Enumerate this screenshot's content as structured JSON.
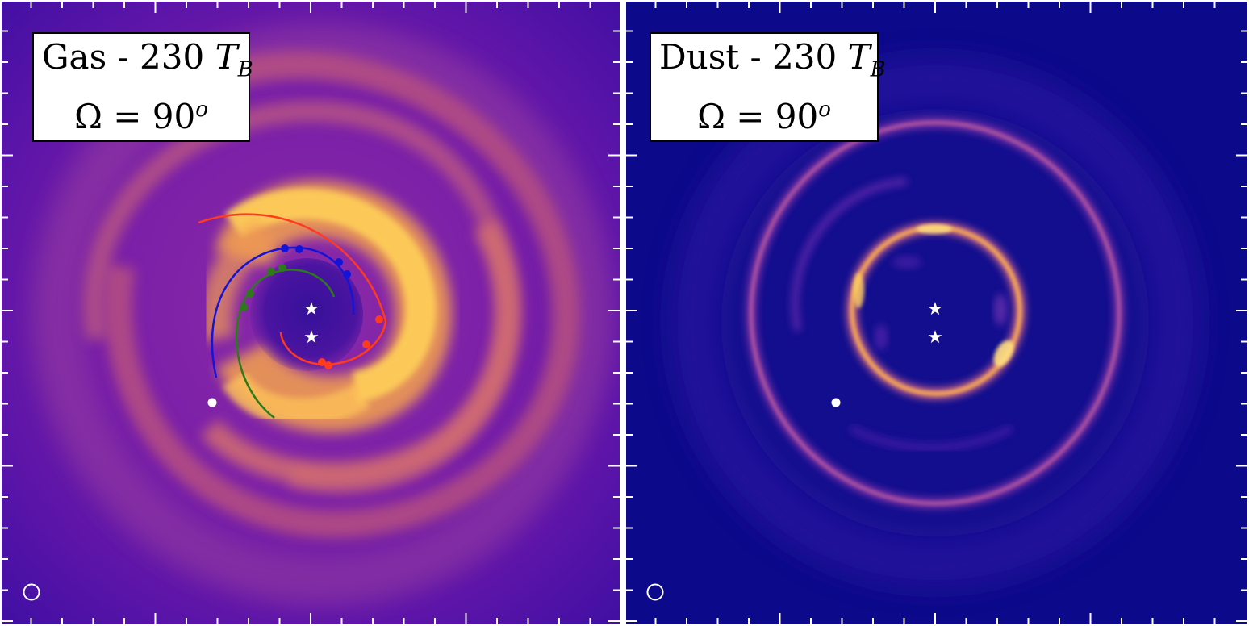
{
  "panels": [
    {
      "id": "gas",
      "title_prefix": "Gas - 230 ",
      "title_var": "T",
      "title_sub": "B",
      "line2_prefix": "Ω = 90",
      "line2_sup": "o",
      "colors": {
        "background": "#6a1aa8",
        "bright": "#ffd458",
        "arm": "#f2a24a"
      },
      "arcs": [
        {
          "color": "#ff3b1f",
          "name": "red"
        },
        {
          "color": "#1414d8",
          "name": "blue"
        },
        {
          "color": "#2d7a1a",
          "name": "green"
        }
      ]
    },
    {
      "id": "dust",
      "title_prefix": "Dust - 230 ",
      "title_var": "T",
      "title_sub": "B",
      "line2_prefix": "Ω = 90",
      "line2_sup": "o",
      "colors": {
        "background": "#0c0a8a",
        "ring": "#ffb84a",
        "bright": "#ffe080"
      }
    }
  ]
}
